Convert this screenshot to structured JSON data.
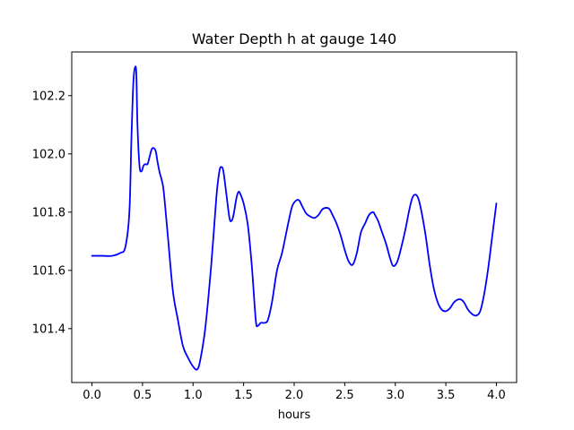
{
  "chart_data": {
    "type": "line",
    "title": "Water Depth h at gauge 140",
    "xlabel": "hours",
    "ylabel": "",
    "xlim": [
      -0.2,
      4.2
    ],
    "ylim": [
      101.215,
      102.35
    ],
    "xticks": [
      0.0,
      0.5,
      1.0,
      1.5,
      2.0,
      2.5,
      3.0,
      3.5,
      4.0
    ],
    "xtick_labels": [
      "0.0",
      "0.5",
      "1.0",
      "1.5",
      "2.0",
      "2.5",
      "3.0",
      "3.5",
      "4.0"
    ],
    "yticks": [
      101.4,
      101.6,
      101.8,
      102.0,
      102.2
    ],
    "ytick_labels": [
      "101.4",
      "101.6",
      "101.8",
      "102.0",
      "102.2"
    ],
    "grid": false,
    "series": [
      {
        "color": "#0000ff",
        "x": [
          0.0,
          0.1,
          0.2,
          0.28,
          0.33,
          0.37,
          0.39,
          0.41,
          0.43,
          0.44,
          0.45,
          0.47,
          0.49,
          0.51,
          0.53,
          0.55,
          0.57,
          0.59,
          0.61,
          0.63,
          0.65,
          0.67,
          0.69,
          0.71,
          0.75,
          0.8,
          0.85,
          0.9,
          0.95,
          1.0,
          1.04,
          1.07,
          1.12,
          1.18,
          1.23,
          1.26,
          1.28,
          1.3,
          1.33,
          1.36,
          1.38,
          1.4,
          1.43,
          1.45,
          1.47,
          1.5,
          1.54,
          1.58,
          1.62,
          1.64,
          1.67,
          1.71,
          1.74,
          1.78,
          1.83,
          1.88,
          1.94,
          1.98,
          2.02,
          2.05,
          2.08,
          2.12,
          2.16,
          2.2,
          2.24,
          2.28,
          2.32,
          2.35,
          2.38,
          2.42,
          2.46,
          2.5,
          2.54,
          2.58,
          2.62,
          2.66,
          2.7,
          2.74,
          2.78,
          2.8,
          2.83,
          2.87,
          2.91,
          2.95,
          2.98,
          3.02,
          3.06,
          3.1,
          3.14,
          3.17,
          3.2,
          3.23,
          3.26,
          3.3,
          3.34,
          3.38,
          3.42,
          3.46,
          3.5,
          3.54,
          3.58,
          3.62,
          3.65,
          3.68,
          3.72,
          3.76,
          3.8,
          3.84,
          3.88,
          3.92,
          3.96,
          4.0
        ],
        "y": [
          101.65,
          101.65,
          101.65,
          101.66,
          101.68,
          101.8,
          102.05,
          102.25,
          102.3,
          102.26,
          102.1,
          101.96,
          101.94,
          101.96,
          101.965,
          101.965,
          101.99,
          102.015,
          102.02,
          102.01,
          101.97,
          101.935,
          101.91,
          101.87,
          101.72,
          101.53,
          101.43,
          101.34,
          101.3,
          101.27,
          101.26,
          101.29,
          101.4,
          101.62,
          101.85,
          101.94,
          101.955,
          101.94,
          101.86,
          101.78,
          101.77,
          101.79,
          101.85,
          101.87,
          101.86,
          101.83,
          101.76,
          101.62,
          101.43,
          101.41,
          101.42,
          101.42,
          101.43,
          101.49,
          101.6,
          101.66,
          101.76,
          101.82,
          101.84,
          101.84,
          101.82,
          101.795,
          101.785,
          101.78,
          101.79,
          101.81,
          101.815,
          101.81,
          101.79,
          101.76,
          101.72,
          101.67,
          101.63,
          101.62,
          101.66,
          101.73,
          101.76,
          101.79,
          101.8,
          101.79,
          101.77,
          101.73,
          101.69,
          101.64,
          101.615,
          101.63,
          101.68,
          101.74,
          101.81,
          101.85,
          101.86,
          101.845,
          101.8,
          101.72,
          101.62,
          101.54,
          101.49,
          101.465,
          101.46,
          101.47,
          101.49,
          101.5,
          101.5,
          101.49,
          101.465,
          101.45,
          101.445,
          101.46,
          101.52,
          101.61,
          101.72,
          101.83
        ]
      }
    ]
  }
}
